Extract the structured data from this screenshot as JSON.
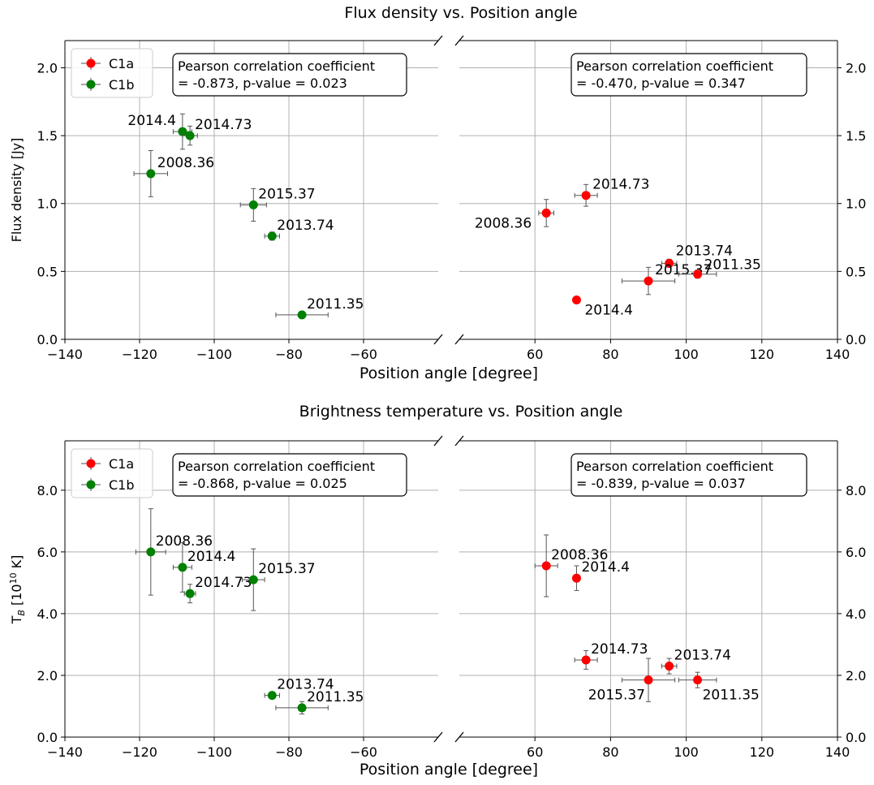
{
  "chart_data": [
    {
      "type": "scatter",
      "title": "Flux density vs. Position angle",
      "xlabel": "Position angle [degree]",
      "ylabel": "Flux density [Jy]",
      "y_tick_labels": [
        "0.0",
        "0.5",
        "1.0",
        "1.5",
        "2.0"
      ],
      "x_tick_labels_left": [
        "−140",
        "−120",
        "−100",
        "−80",
        "−60"
      ],
      "x_tick_labels_right": [
        "60",
        "80",
        "100",
        "120",
        "140"
      ],
      "left_xlim": [
        -140,
        -40
      ],
      "right_xlim": [
        40,
        140
      ],
      "ylim": [
        0,
        2.2
      ],
      "grid": true,
      "legend_position": "top-left",
      "legend": [
        "C1a",
        "C1b"
      ],
      "correlation_left": [
        "Pearson correlation coefficient",
        "= -0.873, p-value = 0.023"
      ],
      "correlation_right": [
        "Pearson correlation coefficient",
        "= -0.470, p-value = 0.347"
      ],
      "series": [
        {
          "name": "C1a",
          "color": "#ff0000",
          "points": [
            {
              "label": "2008.36",
              "x": 63,
              "y": 0.93,
              "xerr": 2,
              "yerr": 0.1
            },
            {
              "label": "2014.73",
              "x": 73.5,
              "y": 1.06,
              "xerr": 3,
              "yerr": 0.08
            },
            {
              "label": "2013.74",
              "x": 95.5,
              "y": 0.56,
              "xerr": 2,
              "yerr": 0.03
            },
            {
              "label": "2015.37",
              "x": 90,
              "y": 0.43,
              "xerr": 7,
              "yerr": 0.1
            },
            {
              "label": "2011.35",
              "x": 103,
              "y": 0.48,
              "xerr": 5,
              "yerr": 0.03
            },
            {
              "label": "2014.4",
              "x": 71,
              "y": 0.29,
              "xerr": 0,
              "yerr": 0
            }
          ]
        },
        {
          "name": "C1b",
          "color": "#008000",
          "points": [
            {
              "label": "2014.4",
              "x": -108.5,
              "y": 1.53,
              "xerr": 2.5,
              "yerr": 0.13
            },
            {
              "label": "2014.73",
              "x": -106.5,
              "y": 1.5,
              "xerr": 2,
              "yerr": 0.07
            },
            {
              "label": "2008.36",
              "x": -117,
              "y": 1.22,
              "xerr": 4.5,
              "yerr": 0.17
            },
            {
              "label": "2015.37",
              "x": -89.5,
              "y": 0.99,
              "xerr": 3.5,
              "yerr": 0.12
            },
            {
              "label": "2013.74",
              "x": -84.5,
              "y": 0.76,
              "xerr": 2,
              "yerr": 0.03
            },
            {
              "label": "2011.35",
              "x": -76.5,
              "y": 0.18,
              "xerr": 7,
              "yerr": 0.02
            }
          ]
        }
      ]
    },
    {
      "type": "scatter",
      "title": "Brightness temperature vs. Position angle",
      "xlabel": "Position angle [degree]",
      "ylabel_base": "T",
      "ylabel_sub": "B",
      "ylabel_rest": " [10",
      "ylabel_sup": "10",
      "ylabel_unit": " K]",
      "y_tick_labels": [
        "0.0",
        "2.0",
        "4.0",
        "6.0",
        "8.0"
      ],
      "x_tick_labels_left": [
        "−140",
        "−120",
        "−100",
        "−80",
        "−60"
      ],
      "x_tick_labels_right": [
        "60",
        "80",
        "100",
        "120",
        "140"
      ],
      "left_xlim": [
        -140,
        -40
      ],
      "right_xlim": [
        40,
        140
      ],
      "ylim": [
        0,
        9.6
      ],
      "grid": true,
      "legend_position": "top-left",
      "legend": [
        "C1a",
        "C1b"
      ],
      "correlation_left": [
        "Pearson correlation coefficient",
        "= -0.868, p-value = 0.025"
      ],
      "correlation_right": [
        "Pearson correlation coefficient",
        "= -0.839, p-value = 0.037"
      ],
      "series": [
        {
          "name": "C1a",
          "color": "#ff0000",
          "points": [
            {
              "label": "2008.36",
              "x": 63,
              "y": 5.55,
              "xerr": 3,
              "yerr": 1.0
            },
            {
              "label": "2014.4",
              "x": 71,
              "y": 5.15,
              "xerr": 0,
              "yerr": 0.4
            },
            {
              "label": "2014.73",
              "x": 73.5,
              "y": 2.5,
              "xerr": 3,
              "yerr": 0.3
            },
            {
              "label": "2013.74",
              "x": 95.5,
              "y": 2.3,
              "xerr": 2,
              "yerr": 0.25
            },
            {
              "label": "2015.37",
              "x": 90,
              "y": 1.85,
              "xerr": 7,
              "yerr": 0.7
            },
            {
              "label": "2011.35",
              "x": 103,
              "y": 1.85,
              "xerr": 5,
              "yerr": 0.25
            }
          ]
        },
        {
          "name": "C1b",
          "color": "#008000",
          "points": [
            {
              "label": "2008.36",
              "x": -117,
              "y": 6.0,
              "xerr": 4,
              "yerr": 1.4
            },
            {
              "label": "2014.4",
              "x": -108.5,
              "y": 5.5,
              "xerr": 2.5,
              "yerr": 0.8
            },
            {
              "label": "2014.73",
              "x": -106.5,
              "y": 4.65,
              "xerr": 1.5,
              "yerr": 0.3
            },
            {
              "label": "2015.37",
              "x": -89.5,
              "y": 5.1,
              "xerr": 3,
              "yerr": 1.0
            },
            {
              "label": "2013.74",
              "x": -84.5,
              "y": 1.35,
              "xerr": 2,
              "yerr": 0.1
            },
            {
              "label": "2011.35",
              "x": -76.5,
              "y": 0.95,
              "xerr": 7,
              "yerr": 0.2
            }
          ]
        }
      ]
    }
  ]
}
